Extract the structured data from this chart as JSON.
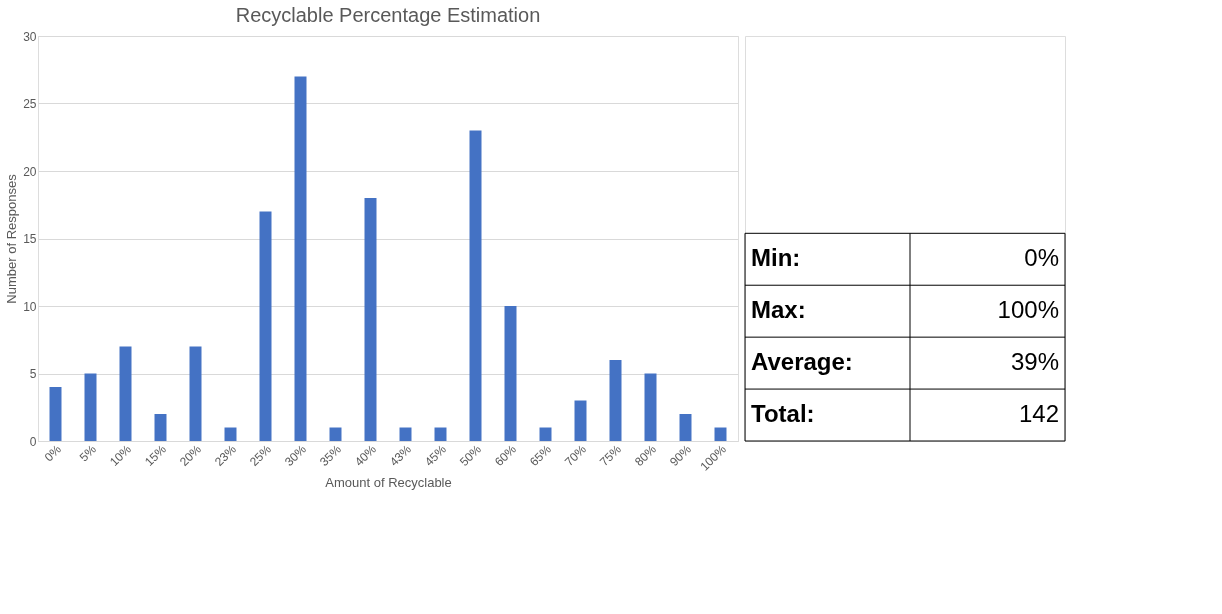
{
  "chart_data": {
    "type": "bar",
    "title": "Recyclable Percentage Estimation",
    "xlabel": "Amount of Recyclable",
    "ylabel": "Number of Responses",
    "categories": [
      "0%",
      "5%",
      "10%",
      "15%",
      "20%",
      "23%",
      "25%",
      "30%",
      "35%",
      "40%",
      "43%",
      "45%",
      "50%",
      "60%",
      "65%",
      "70%",
      "75%",
      "80%",
      "90%",
      "100%"
    ],
    "values": [
      4,
      5,
      7,
      2,
      7,
      1,
      17,
      27,
      1,
      18,
      1,
      1,
      23,
      10,
      1,
      3,
      6,
      5,
      2,
      1
    ],
    "color": "#4472c4",
    "ylim": [
      0,
      30
    ],
    "yticks": [
      0,
      5,
      10,
      15,
      20,
      25,
      30
    ],
    "grid": "y",
    "annotations": [
      "Min:",
      "0%",
      "Max:",
      "100%",
      "Average:",
      "39%",
      "Total:",
      "142"
    ]
  }
}
